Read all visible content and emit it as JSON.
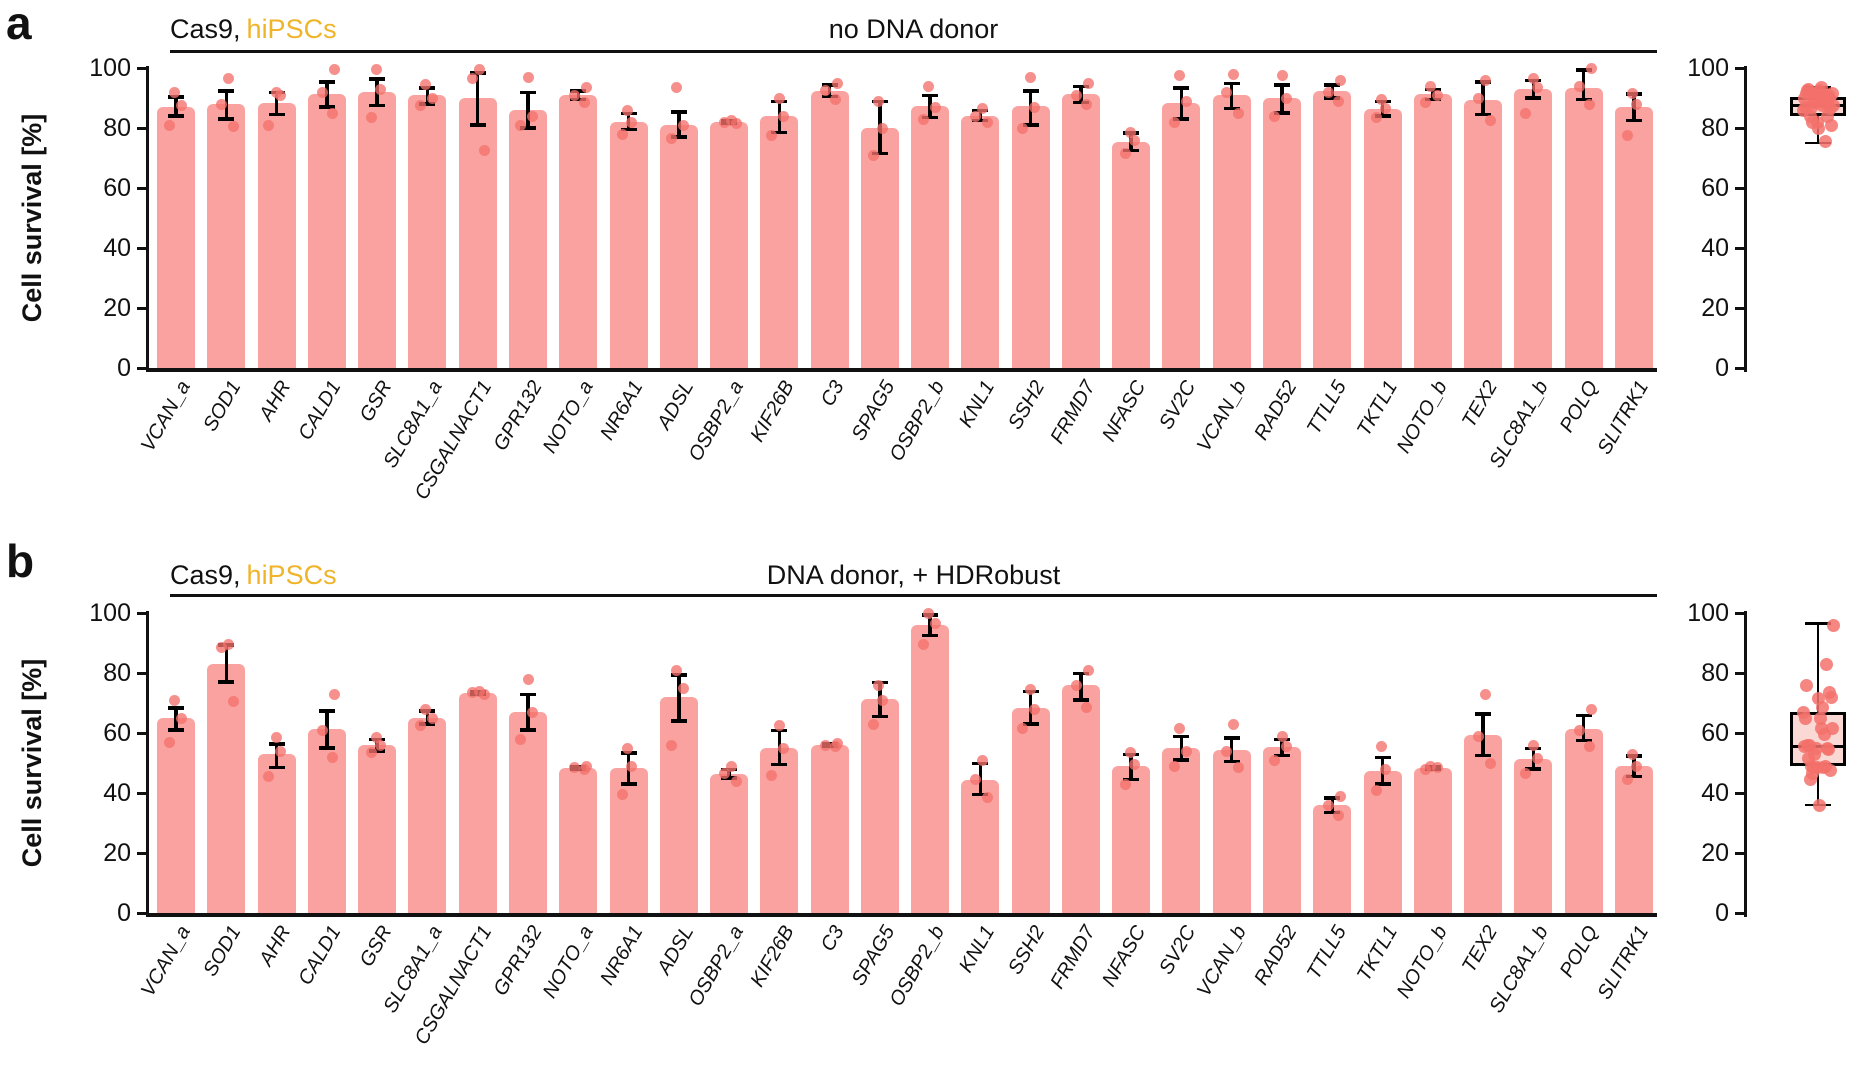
{
  "colors": {
    "bar_fill": "#F9A29F",
    "point_fill": "#F3716B",
    "accent_text": "#F0B429",
    "error_bar": "#000000",
    "box_fill": "#FAD8D4",
    "axis": "#111111"
  },
  "panels": {
    "a": {
      "letter": "a",
      "header": {
        "cell_line": "Cas9,",
        "cell_line_accent": "hiPSCs",
        "treatment": "no DNA donor"
      },
      "y_axis_label": "Cell survival [%]"
    },
    "b": {
      "letter": "b",
      "header": {
        "cell_line": "Cas9,",
        "cell_line_accent": "hiPSCs",
        "treatment": "DNA donor, + HDRobust"
      },
      "y_axis_label": "Cell survival [%]"
    }
  },
  "chart_data": [
    {
      "id": "a_bars",
      "type": "bar",
      "panel": "a",
      "title": "no DNA donor",
      "group_label": "Cas9, hiPSCs",
      "ylabel": "Cell survival [%]",
      "ylim": [
        0,
        100
      ],
      "yticks": [
        0,
        20,
        40,
        60,
        80,
        100
      ],
      "categories": [
        "VCAN_a",
        "SOD1",
        "AHR",
        "CALD1",
        "GSR",
        "SLC8A1_a",
        "CSGALNACT1",
        "GPR132",
        "NOTO_a",
        "NR6A1",
        "ADSL",
        "OSBP2_a",
        "KIF26B",
        "C3",
        "SPAG5",
        "OSBP2_b",
        "KNL1",
        "SSH2",
        "FRMD7",
        "NFASC",
        "SV2C",
        "VCAN_b",
        "RAD52",
        "TTLL5",
        "TKTL1",
        "NOTO_b",
        "TEX2",
        "SLC8A1_b",
        "POLQ",
        "SLITRK1"
      ],
      "values": [
        87,
        88,
        88.5,
        91.5,
        92,
        91,
        90,
        86,
        91,
        82,
        81,
        82,
        84,
        92.5,
        80,
        87.5,
        84,
        87.5,
        91.5,
        75.5,
        88.5,
        91,
        90,
        92.5,
        86.5,
        91.5,
        89.5,
        93,
        93.5,
        87
      ],
      "error_low": [
        84,
        83,
        84.5,
        87,
        87.5,
        88,
        81,
        80,
        89.5,
        79.5,
        77,
        81.5,
        78.5,
        90.5,
        71.5,
        83.5,
        82.5,
        81,
        88.5,
        72.5,
        83,
        86.5,
        85,
        90,
        84,
        89.5,
        84.5,
        90,
        89.5,
        82.5
      ],
      "error_high": [
        90.5,
        92.5,
        92,
        95.5,
        96.5,
        93.5,
        98.5,
        92,
        92.5,
        85,
        85.5,
        82.5,
        89,
        94.5,
        89,
        91,
        86,
        92.5,
        94,
        78.5,
        93.5,
        95,
        94.5,
        94.5,
        89,
        93,
        95.5,
        96,
        99.5,
        91.5
      ],
      "points": [
        [
          81,
          87.5,
          92
        ],
        [
          80.5,
          88,
          96.5
        ],
        [
          81,
          91,
          92
        ],
        [
          85,
          92,
          99.5
        ],
        [
          83.5,
          93,
          99.5
        ],
        [
          87.5,
          90,
          94.5
        ],
        [
          72.5,
          96.5,
          99.5
        ],
        [
          81,
          84,
          97
        ],
        [
          88.5,
          91,
          93.5
        ],
        [
          78,
          82,
          86
        ],
        [
          76.5,
          81,
          93.5
        ],
        [
          81.5,
          82,
          82.5
        ],
        [
          77.5,
          84,
          90
        ],
        [
          89.5,
          92.5,
          95
        ],
        [
          71,
          80,
          89
        ],
        [
          83,
          87,
          94
        ],
        [
          82,
          84,
          86.5
        ],
        [
          80,
          87,
          97
        ],
        [
          88,
          91,
          95
        ],
        [
          71.5,
          76,
          78.5
        ],
        [
          82,
          89,
          97.5
        ],
        [
          85,
          92,
          98
        ],
        [
          84,
          90,
          97.5
        ],
        [
          89,
          92,
          96
        ],
        [
          83.5,
          86.5,
          89.5
        ],
        [
          88.5,
          91,
          94
        ],
        [
          82.5,
          90,
          96
        ],
        [
          85,
          93.5,
          96.5
        ],
        [
          88,
          94,
          100
        ],
        [
          77.5,
          88,
          91.5
        ]
      ]
    },
    {
      "id": "a_box",
      "type": "box",
      "panel": "a",
      "ylim": [
        0,
        100
      ],
      "yticks": [
        0,
        20,
        40,
        60,
        80,
        100
      ],
      "stats": {
        "whisker_low": 75,
        "q1": 84,
        "median": 87.5,
        "q3": 90.5,
        "whisker_high": 93.5
      },
      "points": [
        87,
        88,
        88.5,
        91.5,
        92,
        91,
        90,
        86,
        91,
        82,
        81,
        82,
        84,
        92.5,
        80,
        87.5,
        84,
        87.5,
        91.5,
        75.5,
        88.5,
        91,
        90,
        92.5,
        86.5,
        91.5,
        89.5,
        93,
        93.5,
        87
      ]
    },
    {
      "id": "b_bars",
      "type": "bar",
      "panel": "b",
      "title": "DNA donor, + HDRobust",
      "group_label": "Cas9, hiPSCs",
      "ylabel": "Cell survival [%]",
      "ylim": [
        0,
        100
      ],
      "yticks": [
        0,
        20,
        40,
        60,
        80,
        100
      ],
      "categories": [
        "VCAN_a",
        "SOD1",
        "AHR",
        "CALD1",
        "GSR",
        "SLC8A1_a",
        "CSGALNACT1",
        "GPR132",
        "NOTO_a",
        "NR6A1",
        "ADSL",
        "OSBP2_a",
        "KIF26B",
        "C3",
        "SPAG5",
        "OSBP2_b",
        "KNL1",
        "SSH2",
        "FRMD7",
        "NFASC",
        "SV2C",
        "VCAN_b",
        "RAD52",
        "TTLL5",
        "TKTL1",
        "NOTO_b",
        "TEX2",
        "SLC8A1_b",
        "POLQ",
        "SLITRK1"
      ],
      "values": [
        65,
        83,
        53,
        61.5,
        56,
        65,
        73.5,
        67,
        48.5,
        48.5,
        72,
        46.5,
        55,
        56,
        71.5,
        96,
        44.5,
        68.5,
        76,
        49,
        55,
        54.5,
        55.5,
        36,
        47.5,
        48.5,
        59.5,
        51.5,
        61.5,
        49
      ],
      "error_low": [
        61,
        77,
        48.5,
        55,
        54,
        63,
        73,
        61,
        48,
        43,
        64,
        45,
        49.5,
        55.5,
        65.5,
        92.5,
        39.5,
        63,
        71,
        44.5,
        51,
        50.5,
        52.5,
        33.5,
        43,
        48,
        52.5,
        48,
        57.5,
        45.5
      ],
      "error_high": [
        68.5,
        89.5,
        56.5,
        67.5,
        58,
        67.5,
        74,
        73,
        49,
        53.5,
        79.5,
        48,
        61,
        56.5,
        77,
        99.5,
        50,
        74,
        80,
        53,
        59,
        58.5,
        58,
        38.5,
        52,
        49,
        66.5,
        55,
        66,
        52.5
      ],
      "points": [
        [
          57,
          65,
          71
        ],
        [
          70.5,
          88.5,
          89.5
        ],
        [
          45.5,
          54,
          58.5
        ],
        [
          52,
          61,
          73
        ],
        [
          53.5,
          56,
          58.5
        ],
        [
          62.5,
          65,
          68
        ],
        [
          73,
          73.5,
          74
        ],
        [
          58,
          67,
          78
        ],
        [
          48,
          48.5,
          49
        ],
        [
          39.5,
          49,
          55
        ],
        [
          56,
          75,
          81
        ],
        [
          44,
          46.5,
          49
        ],
        [
          46,
          55,
          62.5
        ],
        [
          55.5,
          56,
          56.5
        ],
        [
          63,
          71,
          76
        ],
        [
          89.5,
          96.5,
          100
        ],
        [
          38.5,
          44.5,
          51
        ],
        [
          61.5,
          68,
          74.5
        ],
        [
          68.5,
          76,
          81
        ],
        [
          43,
          49.5,
          53.5
        ],
        [
          49,
          54,
          61.5
        ],
        [
          48.5,
          54,
          63
        ],
        [
          51,
          55.5,
          59
        ],
        [
          32.5,
          36,
          39
        ],
        [
          41,
          48,
          55.5
        ],
        [
          48,
          48.5,
          49
        ],
        [
          50,
          59,
          73
        ],
        [
          46.5,
          51.5,
          56
        ],
        [
          55.5,
          61,
          68
        ],
        [
          44.5,
          49,
          53
        ]
      ]
    },
    {
      "id": "b_box",
      "type": "box",
      "panel": "b",
      "ylim": [
        0,
        100
      ],
      "yticks": [
        0,
        20,
        40,
        60,
        80,
        100
      ],
      "stats": {
        "whisker_low": 36,
        "q1": 49,
        "median": 55.5,
        "q3": 67,
        "whisker_high": 96.5
      },
      "points": [
        65,
        83,
        53,
        61.5,
        56,
        65,
        73.5,
        67,
        48.5,
        48.5,
        72,
        46.5,
        55,
        56,
        71.5,
        96,
        44.5,
        68.5,
        76,
        49,
        55,
        54.5,
        55.5,
        36,
        47.5,
        48.5,
        59.5,
        51.5,
        61.5,
        49
      ]
    }
  ]
}
